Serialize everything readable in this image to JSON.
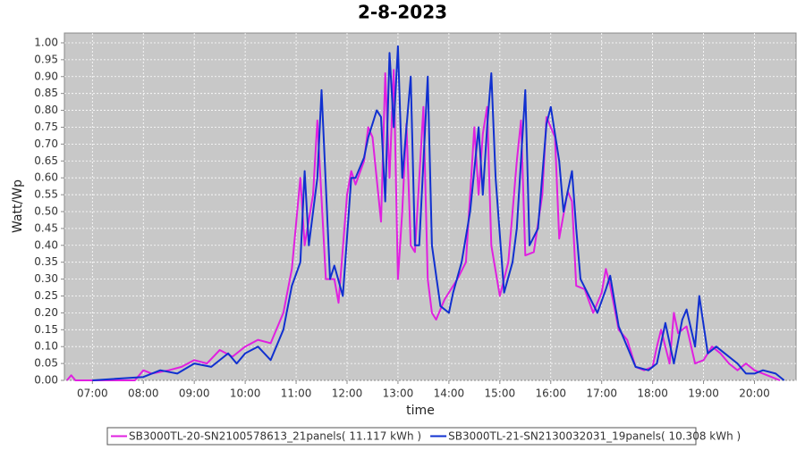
{
  "chart_data": {
    "type": "line",
    "title": "2-8-2023",
    "x_label": "time",
    "y_label": "Watt/Wp",
    "xlim": [
      "06:27",
      "20:49"
    ],
    "xticks": [
      "07:00",
      "08:00",
      "09:00",
      "10:00",
      "11:00",
      "12:00",
      "13:00",
      "14:00",
      "15:00",
      "16:00",
      "17:00",
      "18:00",
      "19:00",
      "20:00"
    ],
    "ylim": [
      0,
      1.029
    ],
    "yticks": [
      {
        "value": 0,
        "label": "0.00"
      },
      {
        "value": 0.05,
        "label": "0.05"
      },
      {
        "value": 0.1,
        "label": "0.10"
      },
      {
        "value": 0.15,
        "label": "0.15"
      },
      {
        "value": 0.2,
        "label": "0.20"
      },
      {
        "value": 0.25,
        "label": "0.25"
      },
      {
        "value": 0.3,
        "label": "0.30"
      },
      {
        "value": 0.35,
        "label": "0.35"
      },
      {
        "value": 0.4,
        "label": "0.40"
      },
      {
        "value": 0.45,
        "label": "0.45"
      },
      {
        "value": 0.5,
        "label": "0.50"
      },
      {
        "value": 0.55,
        "label": "0.55"
      },
      {
        "value": 0.6,
        "label": "0.60"
      },
      {
        "value": 0.65,
        "label": "0.65"
      },
      {
        "value": 0.7,
        "label": "0.70"
      },
      {
        "value": 0.75,
        "label": "0.75"
      },
      {
        "value": 0.8,
        "label": "0.80"
      },
      {
        "value": 0.85,
        "label": "0.85"
      },
      {
        "value": 0.9,
        "label": "0.90"
      },
      {
        "value": 0.95,
        "label": "0.95"
      },
      {
        "value": 1,
        "label": "1.00"
      }
    ],
    "grid": true,
    "legend": "bottom",
    "series": [
      {
        "name": "SB3000TL-20-SN2100578613_21panels( 11.117 kWh )",
        "color": "#e020e0",
        "x": [
          "06:30",
          "06:35",
          "06:40",
          "07:50",
          "08:00",
          "08:10",
          "08:30",
          "08:45",
          "09:00",
          "09:15",
          "09:30",
          "09:45",
          "10:00",
          "10:15",
          "10:30",
          "10:45",
          "10:55",
          "11:05",
          "11:10",
          "11:20",
          "11:25",
          "11:35",
          "11:45",
          "11:50",
          "12:00",
          "12:05",
          "12:10",
          "12:20",
          "12:25",
          "12:30",
          "12:40",
          "12:45",
          "12:50",
          "12:55",
          "13:00",
          "13:05",
          "13:10",
          "13:15",
          "13:20",
          "13:30",
          "13:35",
          "13:40",
          "13:45",
          "13:55",
          "14:10",
          "14:20",
          "14:30",
          "14:35",
          "14:40",
          "14:45",
          "14:50",
          "15:00",
          "15:10",
          "15:20",
          "15:25",
          "15:30",
          "15:40",
          "15:50",
          "15:55",
          "16:05",
          "16:10",
          "16:20",
          "16:25",
          "16:30",
          "16:40",
          "16:50",
          "17:00",
          "17:05",
          "17:10",
          "17:20",
          "17:30",
          "17:40",
          "17:50",
          "18:00",
          "18:05",
          "18:10",
          "18:20",
          "18:25",
          "18:30",
          "18:40",
          "18:50",
          "19:00",
          "19:10",
          "19:20",
          "19:30",
          "19:40",
          "19:50",
          "20:00",
          "20:10",
          "20:20",
          "20:30"
        ],
        "values": [
          0,
          0.015,
          0,
          0,
          0.03,
          0.02,
          0.03,
          0.04,
          0.06,
          0.05,
          0.09,
          0.07,
          0.1,
          0.12,
          0.11,
          0.2,
          0.33,
          0.6,
          0.4,
          0.55,
          0.77,
          0.3,
          0.3,
          0.23,
          0.55,
          0.62,
          0.58,
          0.65,
          0.75,
          0.72,
          0.47,
          0.91,
          0.6,
          0.92,
          0.3,
          0.5,
          0.76,
          0.4,
          0.38,
          0.81,
          0.3,
          0.2,
          0.18,
          0.24,
          0.3,
          0.35,
          0.75,
          0.55,
          0.73,
          0.81,
          0.4,
          0.25,
          0.35,
          0.65,
          0.77,
          0.37,
          0.38,
          0.55,
          0.78,
          0.72,
          0.42,
          0.56,
          0.53,
          0.28,
          0.27,
          0.2,
          0.26,
          0.33,
          0.28,
          0.15,
          0.12,
          0.04,
          0.03,
          0.04,
          0.1,
          0.15,
          0.05,
          0.2,
          0.14,
          0.16,
          0.05,
          0.06,
          0.1,
          0.08,
          0.05,
          0.03,
          0.05,
          0.03,
          0.02,
          0.01,
          0
        ]
      },
      {
        "name": "SB3000TL-21-SN2130032031_19panels( 10.308 kWh )",
        "color": "#1030d0",
        "x": [
          "07:00",
          "08:00",
          "08:20",
          "08:40",
          "09:00",
          "09:20",
          "09:40",
          "09:50",
          "10:00",
          "10:15",
          "10:30",
          "10:45",
          "10:55",
          "11:05",
          "11:10",
          "11:15",
          "11:25",
          "11:30",
          "11:40",
          "11:45",
          "11:55",
          "12:05",
          "12:10",
          "12:20",
          "12:25",
          "12:35",
          "12:40",
          "12:45",
          "12:50",
          "12:55",
          "13:00",
          "13:05",
          "13:15",
          "13:20",
          "13:25",
          "13:35",
          "13:40",
          "13:50",
          "14:00",
          "14:05",
          "14:15",
          "14:25",
          "14:35",
          "14:40",
          "14:45",
          "14:50",
          "14:55",
          "15:05",
          "15:15",
          "15:20",
          "15:30",
          "15:35",
          "15:45",
          "15:55",
          "16:00",
          "16:10",
          "16:15",
          "16:25",
          "16:30",
          "16:35",
          "16:45",
          "16:55",
          "17:05",
          "17:10",
          "17:20",
          "17:30",
          "17:40",
          "17:55",
          "18:05",
          "18:15",
          "18:25",
          "18:35",
          "18:40",
          "18:50",
          "18:55",
          "19:05",
          "19:15",
          "19:25",
          "19:40",
          "19:50",
          "20:00",
          "20:10",
          "20:25",
          "20:35"
        ],
        "values": [
          0,
          0.01,
          0.03,
          0.02,
          0.05,
          0.04,
          0.08,
          0.05,
          0.08,
          0.1,
          0.06,
          0.15,
          0.28,
          0.35,
          0.62,
          0.4,
          0.6,
          0.86,
          0.3,
          0.34,
          0.25,
          0.6,
          0.6,
          0.66,
          0.72,
          0.8,
          0.78,
          0.53,
          0.97,
          0.75,
          0.99,
          0.6,
          0.9,
          0.4,
          0.4,
          0.9,
          0.4,
          0.22,
          0.2,
          0.26,
          0.35,
          0.5,
          0.75,
          0.55,
          0.75,
          0.91,
          0.6,
          0.26,
          0.35,
          0.45,
          0.86,
          0.4,
          0.45,
          0.76,
          0.81,
          0.65,
          0.5,
          0.62,
          0.45,
          0.3,
          0.25,
          0.2,
          0.27,
          0.31,
          0.16,
          0.1,
          0.04,
          0.03,
          0.05,
          0.17,
          0.05,
          0.18,
          0.21,
          0.1,
          0.25,
          0.08,
          0.1,
          0.08,
          0.05,
          0.02,
          0.02,
          0.03,
          0.02,
          0
        ]
      }
    ]
  }
}
